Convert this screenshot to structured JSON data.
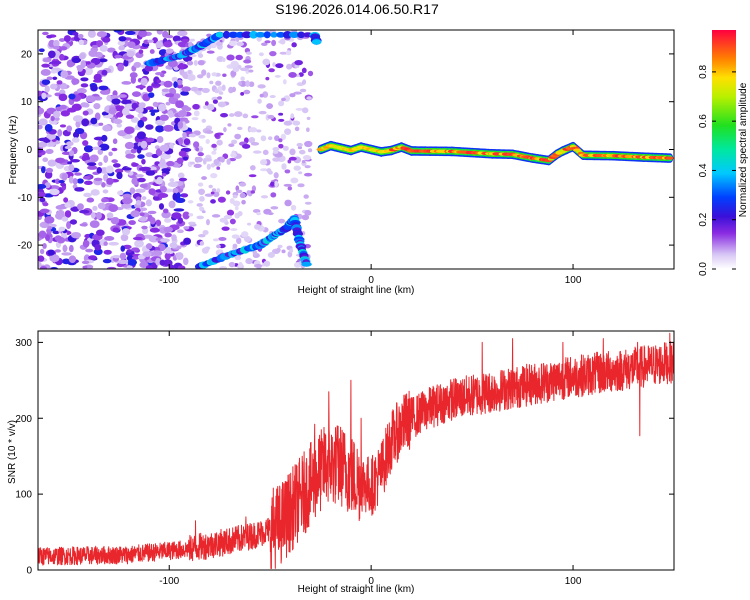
{
  "title": "S196.2026.014.06.50.R17",
  "colors": {
    "snr_line": "#e8262b",
    "axis": "#000000"
  },
  "chart_data": [
    {
      "type": "heatmap",
      "xlabel": "Height of straight line (km)",
      "ylabel": "Frequency (Hz)",
      "xlim": [
        -165,
        150
      ],
      "ylim": [
        -25,
        25
      ],
      "xticks": [
        -100,
        0,
        100
      ],
      "xtick_labels": [
        "-100",
        "0",
        "100"
      ],
      "yticks": [
        -20,
        -10,
        0,
        10,
        20
      ],
      "ytick_labels": [
        "-20",
        "-10",
        "0",
        "10",
        "20"
      ],
      "colorbar": {
        "label": "Normalized spectral amplitude",
        "range": [
          0,
          0.97
        ],
        "ticks": [
          0.0,
          0.2,
          0.4,
          0.6,
          0.8
        ],
        "tick_labels": [
          "0.0",
          "0.2",
          "0.4",
          "0.6",
          "0.8"
        ],
        "colormap": "rainbow-white"
      },
      "features": {
        "noise_region_x": [
          -165,
          -90
        ],
        "sparse_region_x": [
          -90,
          -55
        ],
        "upper_arc": [
          [
            -110,
            18
          ],
          [
            -95,
            19.5
          ],
          [
            -85,
            21.5
          ],
          [
            -75,
            24
          ],
          [
            -28,
            24
          ],
          [
            -27,
            22.5
          ]
        ],
        "lower_arc": [
          [
            -85,
            -24.5
          ],
          [
            -70,
            -22
          ],
          [
            -55,
            -20
          ],
          [
            -48,
            -18
          ],
          [
            -42,
            -16.5
          ],
          [
            -38,
            -14.5
          ],
          [
            -35,
            -20
          ],
          [
            -32,
            -24
          ]
        ],
        "doppler_line": [
          [
            -25,
            0
          ],
          [
            -20,
            0.8
          ],
          [
            -15,
            0.3
          ],
          [
            -10,
            -0.2
          ],
          [
            -5,
            0.5
          ],
          [
            0,
            0
          ],
          [
            5,
            -0.5
          ],
          [
            10,
            -0.2
          ],
          [
            15,
            0.5
          ],
          [
            20,
            -0.3
          ],
          [
            40,
            -0.4
          ],
          [
            60,
            -0.9
          ],
          [
            70,
            -1.0
          ],
          [
            80,
            -1.8
          ],
          [
            88,
            -2.3
          ],
          [
            92,
            -1.0
          ],
          [
            95,
            -0.3
          ],
          [
            100,
            0.6
          ],
          [
            105,
            -1.2
          ],
          [
            120,
            -1.3
          ],
          [
            135,
            -1.6
          ],
          [
            148,
            -1.8
          ]
        ]
      }
    },
    {
      "type": "line",
      "xlabel": "Height of straight line (km)",
      "ylabel": "SNR (10 * v/v)",
      "xlim": [
        -165,
        150
      ],
      "ylim": [
        0,
        315
      ],
      "xticks": [
        -100,
        0,
        100
      ],
      "xtick_labels": [
        "-100",
        "0",
        "100"
      ],
      "yticks": [
        0,
        100,
        200,
        300
      ],
      "ytick_labels": [
        "0",
        "100",
        "200",
        "300"
      ],
      "series": [
        {
          "name": "SNR",
          "trend": [
            [
              -165,
              18
            ],
            [
              -120,
              20
            ],
            [
              -90,
              28
            ],
            [
              -70,
              38
            ],
            [
              -55,
              48
            ],
            [
              -45,
              60
            ],
            [
              -35,
              95
            ],
            [
              -28,
              120
            ],
            [
              -22,
              140
            ],
            [
              -15,
              138
            ],
            [
              -8,
              120
            ],
            [
              0,
              110
            ],
            [
              5,
              130
            ],
            [
              10,
              170
            ],
            [
              15,
              190
            ],
            [
              20,
              200
            ],
            [
              30,
              215
            ],
            [
              40,
              225
            ],
            [
              60,
              235
            ],
            [
              80,
              245
            ],
            [
              100,
              255
            ],
            [
              120,
              262
            ],
            [
              140,
              270
            ],
            [
              150,
              275
            ]
          ],
          "spikes": [
            [
              -87,
              65
            ],
            [
              -62,
              70
            ],
            [
              -28,
              192
            ],
            [
              -21,
              235
            ],
            [
              -10,
              250
            ],
            [
              -5,
              200
            ],
            [
              55,
              300
            ],
            [
              70,
              305
            ],
            [
              95,
              300
            ],
            [
              115,
              305
            ],
            [
              132,
              300
            ],
            [
              148,
              312
            ],
            [
              133,
              177
            ]
          ]
        }
      ]
    }
  ]
}
